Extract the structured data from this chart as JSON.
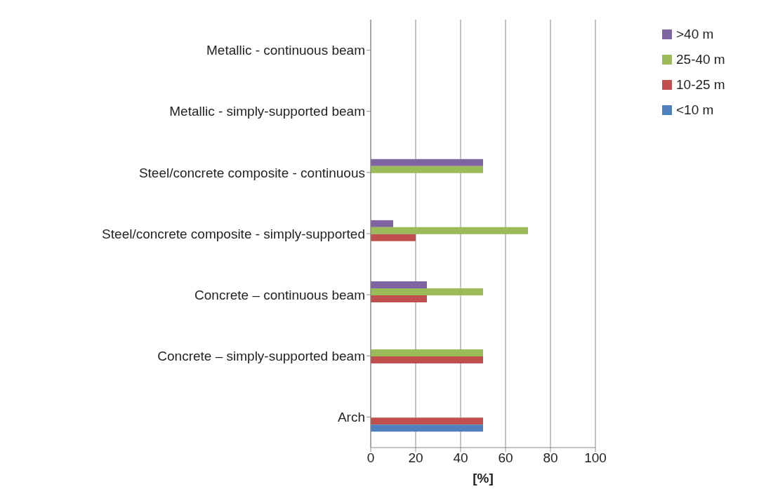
{
  "chart_data": {
    "type": "bar",
    "orientation": "horizontal",
    "xlabel": "[%]",
    "categories": [
      "Metallic - continuous beam",
      "Metallic - simply-supported beam",
      "Steel/concrete composite - continuous",
      "Steel/concrete composite - simply-supported",
      "Concrete – continuous beam",
      "Concrete – simply-supported beam",
      "Arch"
    ],
    "series": [
      {
        "name": "<10 m",
        "color": "#4f81bd",
        "values": [
          null,
          null,
          null,
          null,
          null,
          null,
          50
        ]
      },
      {
        "name": "10-25 m",
        "color": "#c0504d",
        "values": [
          null,
          null,
          null,
          20,
          25,
          50,
          50
        ]
      },
      {
        "name": "25-40 m",
        "color": "#9bbb59",
        "values": [
          null,
          null,
          50,
          70,
          50,
          50,
          null
        ]
      },
      {
        "name": ">40 m",
        "color": "#8064a2",
        "values": [
          null,
          null,
          50,
          10,
          25,
          null,
          null
        ]
      }
    ],
    "xlim": [
      0,
      100
    ],
    "xticks": [
      0,
      20,
      40,
      60,
      80,
      100
    ],
    "grid": "x",
    "legend": "top right"
  }
}
